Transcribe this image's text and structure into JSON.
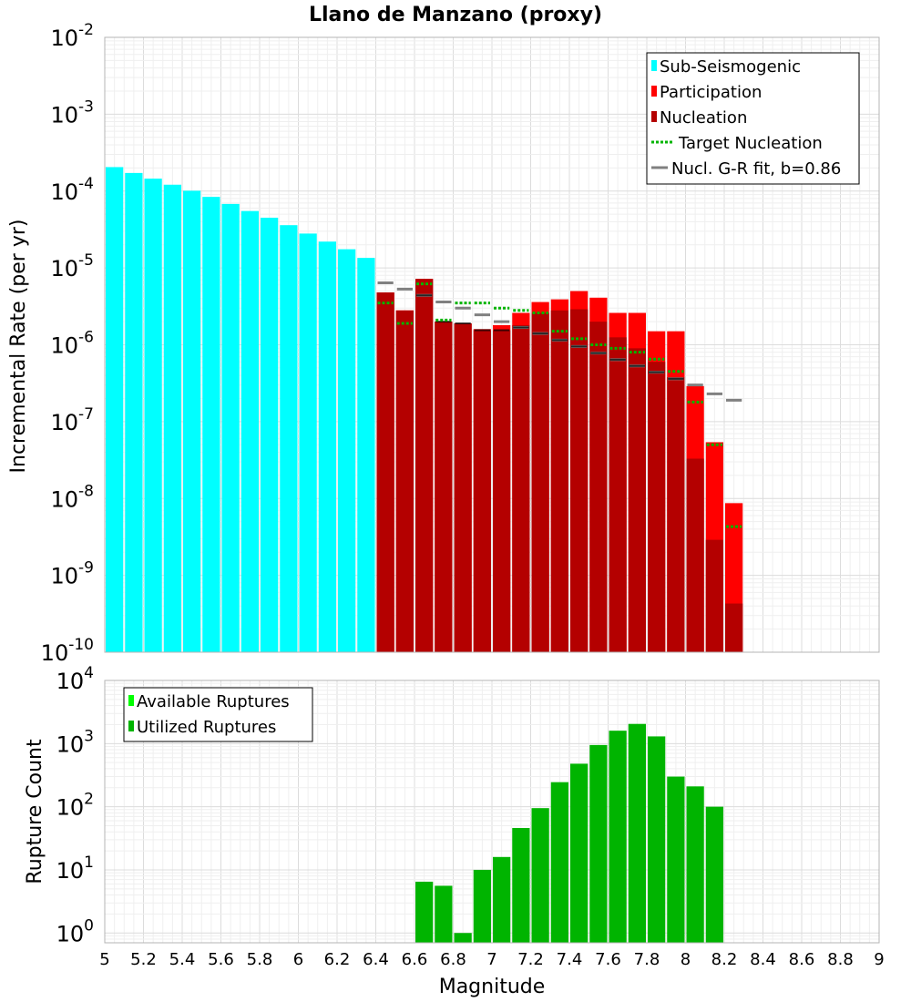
{
  "chart_data": [
    {
      "type": "bar",
      "title": "Llano de Manzano (proxy)",
      "xlabel": "",
      "ylabel": "Incremental Rate (per yr)",
      "xlim": [
        5,
        9
      ],
      "ylim": [
        1e-10,
        0.01
      ],
      "yscale": "log",
      "bin_width": 0.1,
      "ytick_labels": [
        {
          "base": "10",
          "exp": "-2"
        },
        {
          "base": "10",
          "exp": "-3"
        },
        {
          "base": "10",
          "exp": "-4"
        },
        {
          "base": "10",
          "exp": "-5"
        },
        {
          "base": "10",
          "exp": "-6"
        },
        {
          "base": "10",
          "exp": "-7"
        },
        {
          "base": "10",
          "exp": "-8"
        },
        {
          "base": "10",
          "exp": "-9"
        },
        {
          "base": "10",
          "exp": "-10"
        }
      ],
      "legend_position": "top-right",
      "legend": [
        {
          "label": "Sub-Seismogenic",
          "color": "#00ffff",
          "kind": "bar"
        },
        {
          "label": "Participation",
          "color": "#ff0000",
          "kind": "bar"
        },
        {
          "label": "Nucleation",
          "color": "#b40000",
          "kind": "bar"
        },
        {
          "label": "Target Nucleation",
          "color": "#00b400",
          "kind": "dotted"
        },
        {
          "label": "Nucl. G-R fit, b=0.86",
          "color": "#808080",
          "kind": "line"
        }
      ],
      "series": [
        {
          "name": "Sub-Seismogenic",
          "color": "#00ffff",
          "x": [
            5.05,
            5.15,
            5.25,
            5.35,
            5.45,
            5.55,
            5.65,
            5.75,
            5.85,
            5.95,
            6.05,
            6.15,
            6.25,
            6.35
          ],
          "values": [
            0.000205,
            0.000172,
            0.000145,
            0.000121,
            0.000101,
            8.4e-05,
            6.8e-05,
            5.5e-05,
            4.5e-05,
            3.6e-05,
            2.8e-05,
            2.2e-05,
            1.75e-05,
            1.35e-05
          ]
        },
        {
          "name": "Participation",
          "color": "#ff0000",
          "x": [
            6.45,
            6.55,
            6.65,
            6.75,
            6.85,
            6.95,
            7.05,
            7.15,
            7.25,
            7.35,
            7.45,
            7.55,
            7.65,
            7.75,
            7.85,
            7.95,
            8.05,
            8.15,
            8.25
          ],
          "values": [
            4.8e-06,
            2.8e-06,
            7.2e-06,
            2e-06,
            1.9e-06,
            1.6e-06,
            1.8e-06,
            2.6e-06,
            3.6e-06,
            3.9e-06,
            5e-06,
            4.1e-06,
            2.6e-06,
            2.6e-06,
            1.5e-06,
            1.5e-06,
            2.9e-07,
            5.4e-08,
            8.7e-09
          ]
        },
        {
          "name": "Nucleation",
          "color": "#b40000",
          "x": [
            6.45,
            6.55,
            6.65,
            6.75,
            6.85,
            6.95,
            7.05,
            7.15,
            7.25,
            7.35,
            7.45,
            7.55,
            7.65,
            7.75,
            7.85,
            7.95,
            8.05,
            8.15,
            8.25
          ],
          "values": [
            4.8e-06,
            2.8e-06,
            7.2e-06,
            2e-06,
            1.9e-06,
            1.55e-06,
            1.55e-06,
            1.8e-06,
            2.6e-06,
            2.8e-06,
            2.9e-06,
            2e-06,
            1.25e-06,
            9e-07,
            6e-07,
            3.8e-07,
            3.3e-08,
            2.9e-09,
            4.3e-10
          ]
        },
        {
          "name": "Target Nucleation",
          "color": "#00b400",
          "x": [
            6.45,
            6.55,
            6.65,
            6.75,
            6.85,
            6.95,
            7.05,
            7.15,
            7.25,
            7.35,
            7.45,
            7.55,
            7.65,
            7.75,
            7.85,
            7.95,
            8.05,
            8.15,
            8.25
          ],
          "values": [
            3.5e-06,
            1.9e-06,
            6.2e-06,
            2.1e-06,
            3.5e-06,
            3.5e-06,
            3e-06,
            2.8e-06,
            2.6e-06,
            1.5e-06,
            1.2e-06,
            1e-06,
            9e-07,
            8e-07,
            6.5e-07,
            4.5e-07,
            1.8e-07,
            5e-08,
            4.3e-09
          ]
        },
        {
          "name": "Nucl. G-R fit, b=0.86",
          "color": "#808080",
          "x": [
            6.45,
            6.55,
            6.65,
            6.75,
            6.85,
            6.95,
            7.05,
            7.15,
            7.25,
            7.35,
            7.45,
            7.55,
            7.65,
            7.75,
            7.85,
            7.95,
            8.05,
            8.15,
            8.25
          ],
          "values": [
            6.4e-06,
            5.3e-06,
            4.4e-06,
            3.6e-06,
            3e-06,
            2.45e-06,
            2e-06,
            1.68e-06,
            1.4e-06,
            1.15e-06,
            9.5e-07,
            7.8e-07,
            6.4e-07,
            5.3e-07,
            4.4e-07,
            3.6e-07,
            3e-07,
            2.3e-07,
            1.9e-07
          ]
        },
        {
          "name": "Nucleation fit marks",
          "color": "#000000",
          "x": [
            6.65,
            6.75,
            6.85,
            6.95,
            7.05,
            7.15,
            7.25,
            7.35,
            7.45,
            7.55,
            7.65,
            7.75,
            7.85,
            7.95
          ],
          "values": [
            4.4e-06,
            2e-06,
            1.9e-06,
            1.55e-06,
            1.55e-06,
            1.68e-06,
            1.4e-06,
            1.15e-06,
            9.5e-07,
            7.8e-07,
            6.4e-07,
            5.3e-07,
            4.4e-07,
            3.6e-07
          ]
        }
      ]
    },
    {
      "type": "bar",
      "title": "",
      "xlabel": "Magnitude",
      "ylabel": "Rupture Count",
      "xlim": [
        5,
        9
      ],
      "ylim": [
        0.7,
        10000
      ],
      "yscale": "log",
      "xtick_labels": [
        "5",
        "5.2",
        "5.4",
        "5.6",
        "5.8",
        "6",
        "6.2",
        "6.4",
        "6.6",
        "6.8",
        "7",
        "7.2",
        "7.4",
        "7.6",
        "7.8",
        "8",
        "8.2",
        "8.4",
        "8.6",
        "8.8",
        "9"
      ],
      "ytick_labels": [
        {
          "base": "10",
          "exp": "4"
        },
        {
          "base": "10",
          "exp": "3"
        },
        {
          "base": "10",
          "exp": "2"
        },
        {
          "base": "10",
          "exp": "1"
        },
        {
          "base": "10",
          "exp": "0"
        }
      ],
      "legend_position": "top-left",
      "legend": [
        {
          "label": "Available Ruptures",
          "color": "#00ff00",
          "kind": "bar"
        },
        {
          "label": "Utilized Ruptures",
          "color": "#00b400",
          "kind": "bar"
        }
      ],
      "series": [
        {
          "name": "Utilized Ruptures",
          "color": "#00b400",
          "x": [
            6.65,
            6.75,
            6.85,
            6.95,
            7.05,
            7.15,
            7.25,
            7.35,
            7.45,
            7.55,
            7.65,
            7.75,
            7.85,
            7.95,
            8.05,
            8.15
          ],
          "values": [
            6.5,
            5.6,
            1,
            10,
            16,
            46,
            95,
            245,
            480,
            950,
            1600,
            2050,
            1300,
            300,
            210,
            100
          ]
        }
      ]
    }
  ]
}
